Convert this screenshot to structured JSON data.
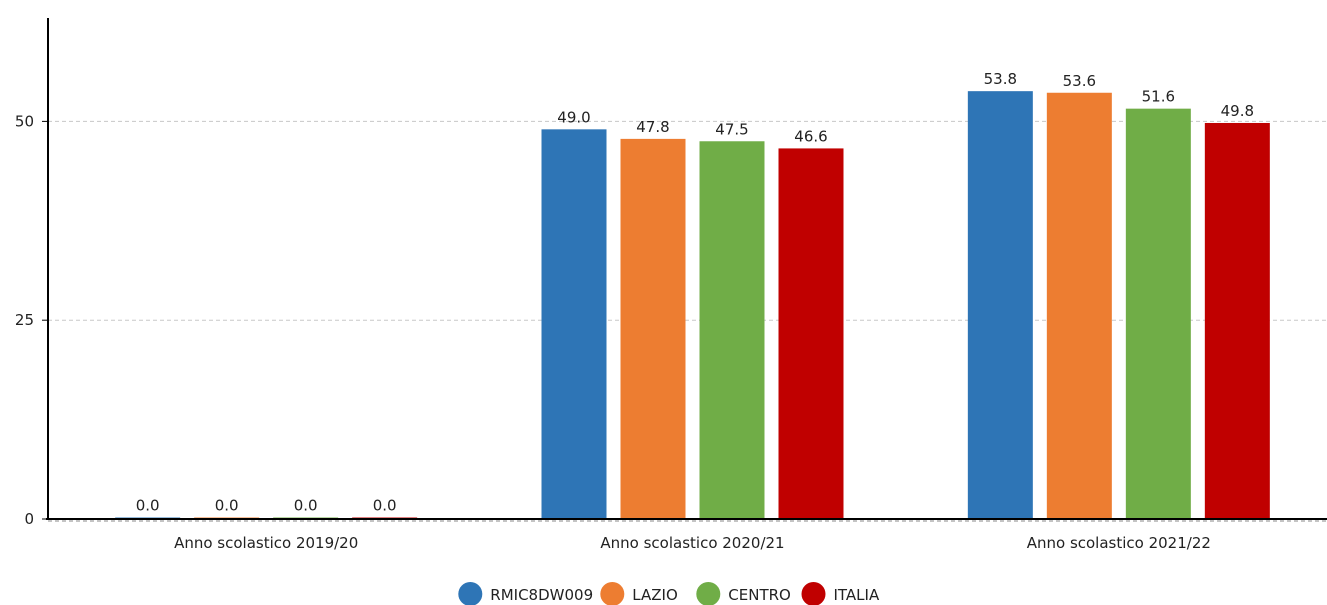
{
  "chart_data": {
    "type": "bar",
    "categories": [
      "Anno scolastico 2019/20",
      "Anno scolastico 2020/21",
      "Anno scolastico 2021/22"
    ],
    "series": [
      {
        "name": "RMIC8DW009",
        "color": "#2e75b6",
        "values": [
          0.0,
          49.0,
          53.8
        ],
        "labels": [
          "0.0",
          "49.0",
          "53.8"
        ]
      },
      {
        "name": "LAZIO",
        "color": "#ed7d31",
        "values": [
          0.0,
          47.8,
          53.6
        ],
        "labels": [
          "0.0",
          "47.8",
          "53.6"
        ]
      },
      {
        "name": "CENTRO",
        "color": "#70ad47",
        "values": [
          0.0,
          47.5,
          51.6
        ],
        "labels": [
          "0.0",
          "47.5",
          "51.6"
        ]
      },
      {
        "name": "ITALIA",
        "color": "#c00000",
        "values": [
          0.0,
          46.6,
          49.8
        ],
        "labels": [
          "0.0",
          "46.6",
          "49.8"
        ]
      }
    ],
    "y_ticks": [
      "0",
      "25",
      "50"
    ],
    "ylim": [
      0,
      63
    ],
    "grid": "horizontal dashed",
    "legend_position": "bottom-center"
  }
}
